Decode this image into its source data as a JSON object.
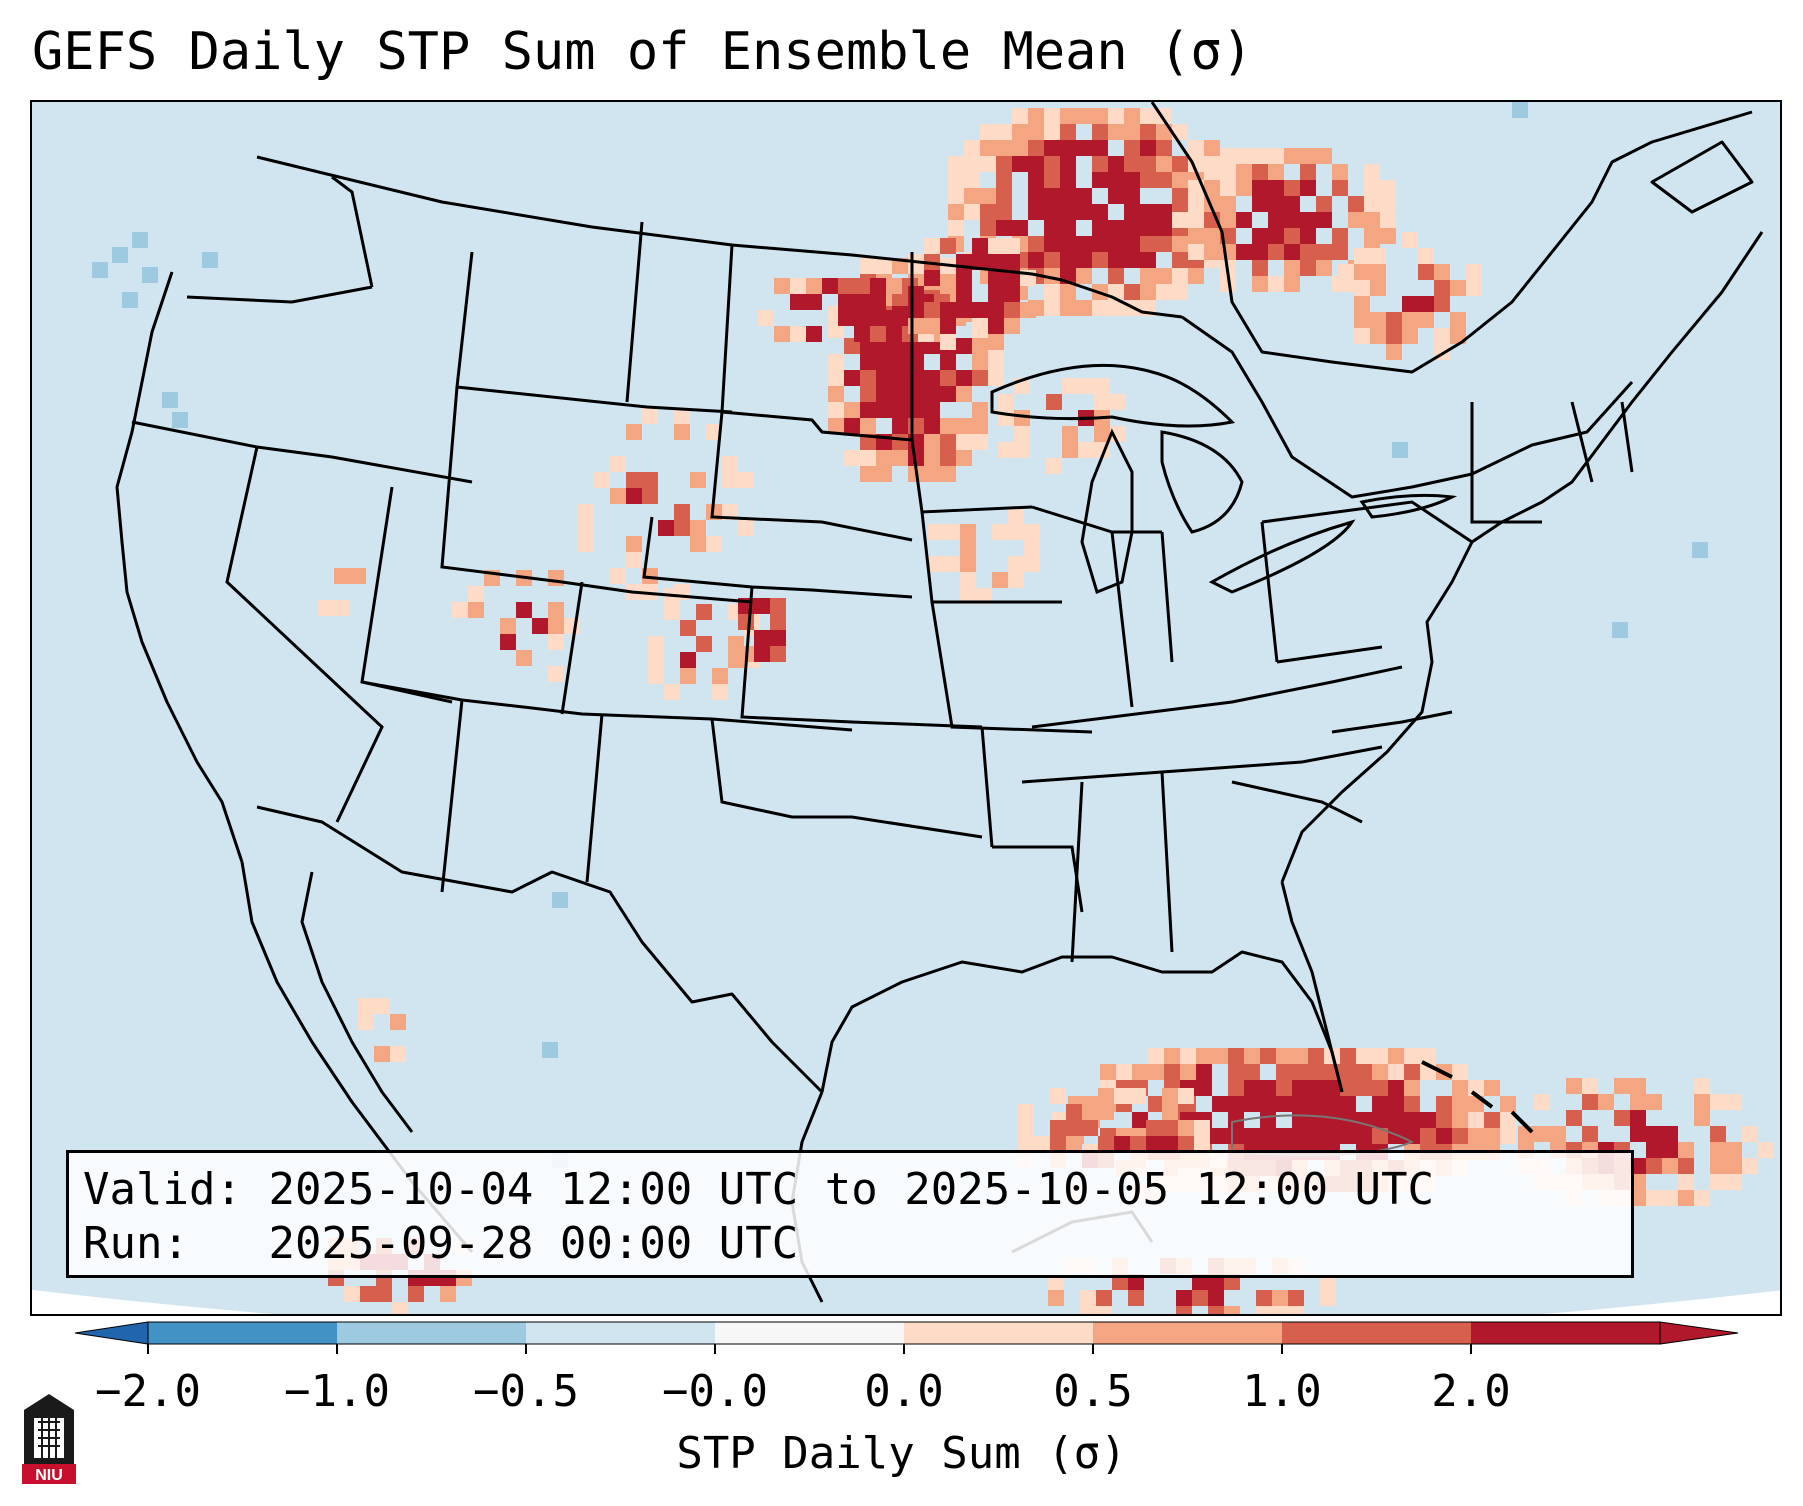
{
  "title": "GEFS Daily STP Sum of Ensemble Mean (σ)",
  "valid_label": "Valid:",
  "valid_range": "2025-10-04 12:00 UTC to 2025-10-05 12:00 UTC",
  "run_label": "Run:",
  "run_time": "2025-09-28 00:00 UTC",
  "colorbar": {
    "label": "STP Daily Sum (σ)",
    "ticks": [
      "−2.0",
      "−1.0",
      "−0.5",
      "−0.0",
      "0.0",
      "0.5",
      "1.0",
      "2.0"
    ],
    "colors": [
      "#4292c6",
      "#9ecae1",
      "#d1e5f0",
      "#f7f7f7",
      "#fddbc7",
      "#f4a582",
      "#d6604d",
      "#b2182b"
    ],
    "under_color": "#2166ac",
    "over_color": "#b2182b"
  },
  "colors": {
    "background": "#d1e5f0",
    "outside": "#ffffff",
    "borders": "#000000"
  },
  "logo_text": "NIU",
  "icons": [
    "niu-logo-icon"
  ]
}
